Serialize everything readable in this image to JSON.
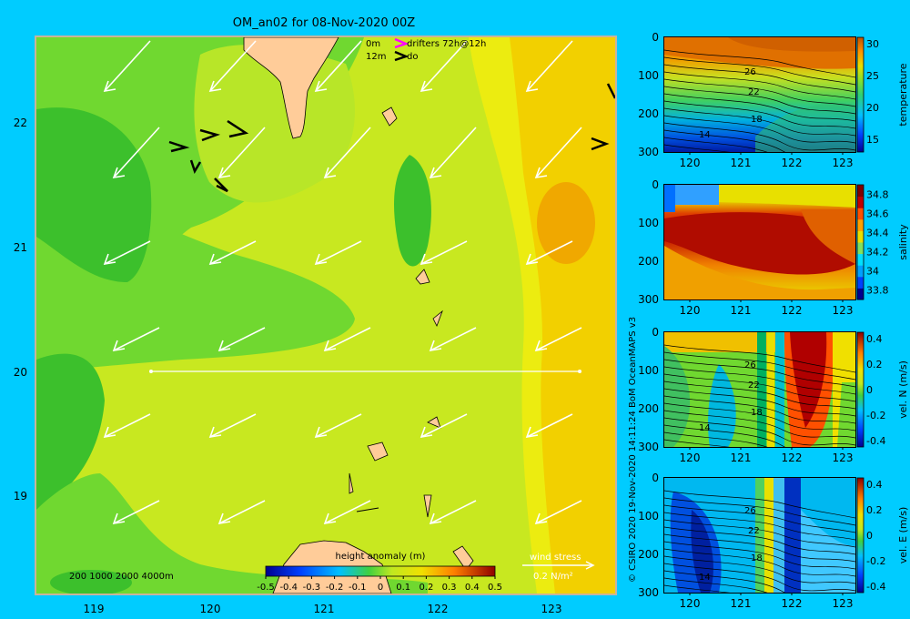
{
  "colors": {
    "background": "#00ccff",
    "frame": "#c8b49c",
    "land": "#ffcc99",
    "section_line": "#ffffff",
    "vector": "#ffffff",
    "drifter_0m": "#ff00ff",
    "drifter_12m": "#000000"
  },
  "chart_data": [
    {
      "type": "map",
      "title": "OM_an02 for 08-Nov-2020 00Z",
      "x_ticks": [
        "119",
        "120",
        "121",
        "122",
        "123"
      ],
      "y_ticks": [
        "22",
        "21",
        "20",
        "19"
      ],
      "xlim": [
        118.5,
        123.5
      ],
      "ylim": [
        18.2,
        22.7
      ],
      "variable": "height anomaly",
      "colorbar": {
        "label": "height anomaly (m)",
        "ticks": [
          "-0.5",
          "-0.4",
          "-0.3",
          "-0.2",
          "-0.1",
          "0",
          "0.1",
          "0.2",
          "0.3",
          "0.4",
          "0.5"
        ],
        "range": [
          -0.5,
          0.5
        ]
      },
      "bathymetry_legend": "200  1000  2000  4000m",
      "drifter_legend": {
        "depth_0m": "0m",
        "depth_12m": "12m",
        "label": "drifters 72h@12h",
        "label_12m": "do"
      },
      "wind_stress_legend": {
        "label": "wind stress",
        "scale": "0.2 N/m²"
      },
      "section_line": {
        "lon_start": 119.5,
        "lon_end": 123.2,
        "lat": 20.0
      }
    },
    {
      "type": "heatmap",
      "variable": "temperature",
      "ylabel_right": "temperature",
      "x_ticks": [
        "120",
        "121",
        "122",
        "123"
      ],
      "y_ticks": [
        "0",
        "100",
        "200",
        "300"
      ],
      "colorbar_ticks": [
        "30",
        "25",
        "20",
        "15"
      ],
      "colorbar_range": [
        13,
        31
      ],
      "contour_labels": [
        "26",
        "22",
        "18",
        "14"
      ]
    },
    {
      "type": "heatmap",
      "variable": "salinity",
      "ylabel_right": "salinity",
      "x_ticks": [
        "120",
        "121",
        "122",
        "123"
      ],
      "y_ticks": [
        "0",
        "100",
        "200",
        "300"
      ],
      "colorbar_ticks": [
        "34.8",
        "34.6",
        "34.4",
        "34.2",
        "34",
        "33.8"
      ],
      "colorbar_range": [
        33.7,
        34.9
      ]
    },
    {
      "type": "heatmap",
      "variable": "vel. N (m/s)",
      "ylabel_right": "vel. N (m/s)",
      "x_ticks": [
        "120",
        "121",
        "122",
        "123"
      ],
      "y_ticks": [
        "0",
        "100",
        "200",
        "300"
      ],
      "colorbar_ticks": [
        "0.4",
        "0.2",
        "0",
        "-0.2",
        "-0.4"
      ],
      "colorbar_range": [
        -0.45,
        0.45
      ],
      "contour_labels": [
        "26",
        "22",
        "18",
        "14"
      ]
    },
    {
      "type": "heatmap",
      "variable": "vel. E (m/s)",
      "ylabel_right": "vel. E (m/s)",
      "x_ticks": [
        "120",
        "121",
        "122",
        "123"
      ],
      "y_ticks": [
        "0",
        "100",
        "200",
        "300"
      ],
      "colorbar_ticks": [
        "0.4",
        "0.2",
        "0",
        "-0.2",
        "-0.4"
      ],
      "colorbar_range": [
        -0.45,
        0.45
      ],
      "contour_labels": [
        "26",
        "22",
        "18",
        "14"
      ]
    }
  ],
  "credit": "© CSIRO 2020  19-Nov-2020 14:11:24 BoM OceanMAPS v3"
}
